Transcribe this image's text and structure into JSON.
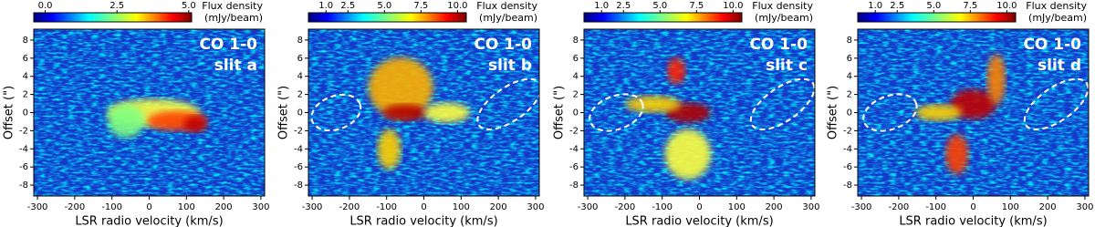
{
  "chart_data": [
    {
      "type": "heatmap",
      "title": "CO 1-0",
      "subtitle": "slit a",
      "xlabel": "LSR radio velocity (km/s)",
      "ylabel": "Offset (\")",
      "xlim": [
        -310,
        310
      ],
      "xticks": [
        -300,
        -200,
        -100,
        0,
        100,
        200,
        300
      ],
      "ylim": [
        -9.2,
        9.2
      ],
      "yticks": [
        -8,
        -6,
        -4,
        -2,
        0,
        2,
        4,
        6,
        8
      ],
      "colorbar_label": [
        "Flux density",
        "(mJy/beam)"
      ],
      "colorbar_lim": [
        -0.4,
        5.1
      ],
      "colorbar_ticks": [
        {
          "value": 0,
          "label": "0.0"
        },
        {
          "value": 2.5,
          "label": "2.5"
        },
        {
          "value": 5,
          "label": "5.0"
        }
      ],
      "colormap": "jet"
    },
    {
      "type": "heatmap",
      "title": "CO 1-0",
      "subtitle": "slit b",
      "xlabel": "LSR radio velocity (km/s)",
      "ylabel": "Offset (\")",
      "xlim": [
        -310,
        310
      ],
      "xticks": [
        -300,
        -200,
        -100,
        0,
        100,
        200,
        300
      ],
      "ylim": [
        -9.2,
        9.2
      ],
      "yticks": [
        -8,
        -6,
        -4,
        -2,
        0,
        2,
        4,
        6,
        8
      ],
      "colorbar_label": [
        "Flux density",
        "(mJy/beam)"
      ],
      "colorbar_lim": [
        -0.2,
        10.6
      ],
      "colorbar_ticks": [
        {
          "value": 1,
          "label": "1.0"
        },
        {
          "value": 2.5,
          "label": "2.5"
        },
        {
          "value": 5,
          "label": "5.0"
        },
        {
          "value": 7.5,
          "label": "7.5"
        },
        {
          "value": 10,
          "label": "10.0"
        }
      ],
      "colormap": "jet"
    },
    {
      "type": "heatmap",
      "title": "CO 1-0",
      "subtitle": "slit c",
      "xlabel": "LSR radio velocity (km/s)",
      "ylabel": "Offset (\")",
      "xlim": [
        -310,
        310
      ],
      "xticks": [
        -300,
        -200,
        -100,
        0,
        100,
        200,
        300
      ],
      "ylim": [
        -9.2,
        9.2
      ],
      "yticks": [
        -8,
        -6,
        -4,
        -2,
        0,
        2,
        4,
        6,
        8
      ],
      "colorbar_label": [
        "Flux density",
        "(mJy/beam)"
      ],
      "colorbar_lim": [
        -0.2,
        10.6
      ],
      "colorbar_ticks": [
        {
          "value": 1,
          "label": "1.0"
        },
        {
          "value": 2.5,
          "label": "2.5"
        },
        {
          "value": 5,
          "label": "5.0"
        },
        {
          "value": 7.5,
          "label": "7.5"
        },
        {
          "value": 10,
          "label": "10.0"
        }
      ],
      "colormap": "jet"
    },
    {
      "type": "heatmap",
      "title": "CO 1-0",
      "subtitle": "slit d",
      "xlabel": "LSR radio velocity (km/s)",
      "ylabel": "Offset (\")",
      "xlim": [
        -310,
        310
      ],
      "xticks": [
        -300,
        -200,
        -100,
        0,
        100,
        200,
        300
      ],
      "ylim": [
        -9.2,
        9.2
      ],
      "yticks": [
        -8,
        -6,
        -4,
        -2,
        0,
        2,
        4,
        6,
        8
      ],
      "colorbar_label": [
        "Flux density",
        "(mJy/beam)"
      ],
      "colorbar_lim": [
        -0.2,
        10.6
      ],
      "colorbar_ticks": [
        {
          "value": 1,
          "label": "1.0"
        },
        {
          "value": 2.5,
          "label": "2.5"
        },
        {
          "value": 5,
          "label": "5.0"
        },
        {
          "value": 7.5,
          "label": "7.5"
        },
        {
          "value": 10,
          "label": "10.0"
        }
      ],
      "colormap": "jet"
    }
  ]
}
